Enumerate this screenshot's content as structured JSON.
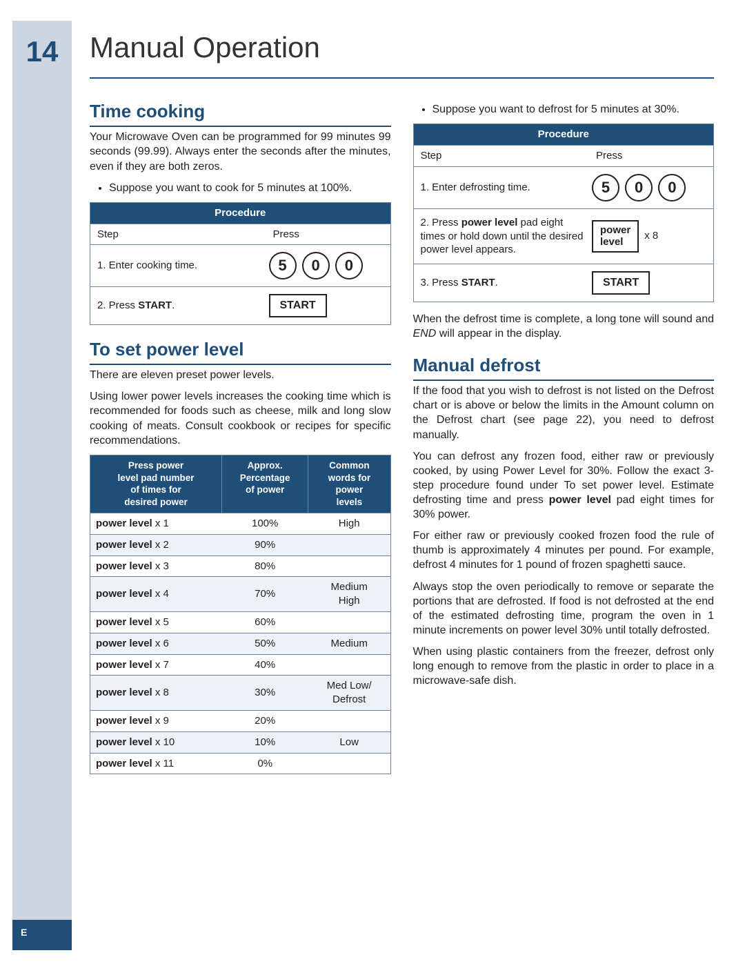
{
  "page_number": "14",
  "page_title": "Manual Operation",
  "side_letter": "E",
  "colors": {
    "brand_blue": "#1f4e79",
    "light_blue_gray": "#cdd6e0",
    "border_blue": "#6b87a8",
    "row_stripe": "#eef1f5"
  },
  "left": {
    "time_cooking": {
      "heading": "Time cooking",
      "intro": "Your Microwave Oven can be programmed for 99 minutes 99 seconds (99.99). Always enter the seconds after the minutes, even if they are both zeros.",
      "bullet": "Suppose you want to cook for 5 minutes at 100%.",
      "procedure": {
        "title": "Procedure",
        "col_step": "Step",
        "col_press": "Press",
        "rows": [
          {
            "step": "1. Enter cooking time.",
            "digits": [
              "5",
              "0",
              "0"
            ]
          },
          {
            "step_prefix": "2. Press ",
            "step_bold": "START",
            "step_suffix": ".",
            "box": "START"
          }
        ]
      }
    },
    "set_power": {
      "heading": "To set power level",
      "p1": "There are eleven preset power levels.",
      "p2": "Using lower power levels increases the cooking time which is recommended for foods such as cheese, milk and long slow cooking of meats. Consult cookbook or recipes for specific recommendations.",
      "table": {
        "col1_l1": "Press power",
        "col1_l2": "level pad number",
        "col1_l3": "of times for",
        "col1_l4": "desired power",
        "col2_l1": "Approx.",
        "col2_l2": "Percentage",
        "col2_l3": "of power",
        "col3_l1": "Common",
        "col3_l2": "words for",
        "col3_l3": "power",
        "col3_l4": "levels",
        "rows": [
          {
            "n": "1",
            "pct": "100%",
            "word": "High"
          },
          {
            "n": "2",
            "pct": "90%",
            "word": ""
          },
          {
            "n": "3",
            "pct": "80%",
            "word": ""
          },
          {
            "n": "4",
            "pct": "70%",
            "word": "Medium\nHigh"
          },
          {
            "n": "5",
            "pct": "60%",
            "word": ""
          },
          {
            "n": "6",
            "pct": "50%",
            "word": "Medium"
          },
          {
            "n": "7",
            "pct": "40%",
            "word": ""
          },
          {
            "n": "8",
            "pct": "30%",
            "word": "Med Low/\nDefrost"
          },
          {
            "n": "9",
            "pct": "20%",
            "word": ""
          },
          {
            "n": "10",
            "pct": "10%",
            "word": "Low"
          },
          {
            "n": "11",
            "pct": "0%",
            "word": ""
          }
        ],
        "row_label_bold": "power level",
        "row_label_prefix": " x "
      }
    }
  },
  "right": {
    "bullet_top": "Suppose you want to defrost for 5 minutes at 30%.",
    "procedure2": {
      "title": "Procedure",
      "col_step": "Step",
      "col_press": "Press",
      "row1": {
        "step": "1. Enter defrosting time.",
        "digits": [
          "5",
          "0",
          "0"
        ]
      },
      "row2": {
        "step_pre": "2. Press ",
        "step_bold": "power level",
        "step_post": " pad eight times or hold down until the desired power level appears.",
        "box_l1": "power",
        "box_l2": "level",
        "suffix": "x 8"
      },
      "row3": {
        "step_pre": "3. Press ",
        "step_bold": "START",
        "step_post": ".",
        "box": "START"
      }
    },
    "after_proc": "When the defrost time is complete, a long tone will sound and END will appear in the display.",
    "manual_defrost": {
      "heading": "Manual defrost",
      "p1": "If the food that you wish to defrost is not listed on the Defrost chart or is above or below the limits in the Amount column on the Defrost chart (see page 22), you need to defrost manually.",
      "p2_pre": "You can defrost any frozen food, either raw or previously cooked, by using Power Level for 30%. Follow the exact 3-step procedure found under To set power level. Estimate defrosting time and press ",
      "p2_bold": "power level",
      "p2_post": " pad eight times for 30% power.",
      "p3": "For either raw or previously cooked frozen food the rule of thumb is approximately 4 minutes per pound. For example, defrost 4 minutes for 1 pound of frozen spaghetti sauce.",
      "p4": "Always stop the oven periodically to remove or separate the portions that are defrosted. If food is not defrosted at the end of the estimated defrosting time, program the oven in 1 minute increments on power level 30% until totally defrosted.",
      "p5": "When using plastic containers from the freezer, defrost only long enough to remove from the plastic in order to place in a microwave-safe dish."
    }
  }
}
